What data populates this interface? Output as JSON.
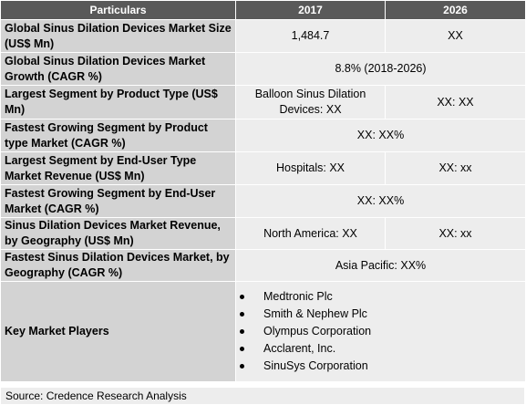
{
  "table": {
    "headers": [
      "Particulars",
      "2017",
      "2026"
    ],
    "rows": [
      {
        "label": "Global Sinus Dilation Devices Market Size (US$ Mn)",
        "v2017": "1,484.7",
        "v2026": "XX"
      },
      {
        "label": "Global Sinus Dilation Devices Market Growth (CAGR %)",
        "merged": "8.8% (2018-2026)"
      },
      {
        "label": "Largest Segment by Product Type (US$ Mn)",
        "v2017": "Balloon Sinus Dilation Devices:  XX",
        "v2026": "XX:  XX"
      },
      {
        "label": "Fastest Growing Segment by Product type Market (CAGR %)",
        "merged": "XX: XX%"
      },
      {
        "label": "Largest Segment by End-User Type Market Revenue (US$ Mn)",
        "v2017": "Hospitals:  XX",
        "v2026": "XX: xx"
      },
      {
        "label": "Fastest Growing Segment by End-User Market (CAGR %)",
        "merged": "XX: XX%"
      },
      {
        "label": "Sinus Dilation Devices Market Revenue, by Geography (US$ Mn)",
        "v2017": "North America: XX",
        "v2026": "XX: xx"
      },
      {
        "label": "Fastest Sinus Dilation Devices Market, by Geography (CAGR %)",
        "merged": "Asia Pacific: XX%"
      }
    ],
    "key_players": {
      "label": "Key Market Players",
      "items": [
        "Medtronic Plc",
        "Smith & Nephew Plc",
        "Olympus Corporation",
        "Acclarent, Inc.",
        "SinuSys Corporation"
      ]
    }
  },
  "source": "Source: Credence Research Analysis"
}
